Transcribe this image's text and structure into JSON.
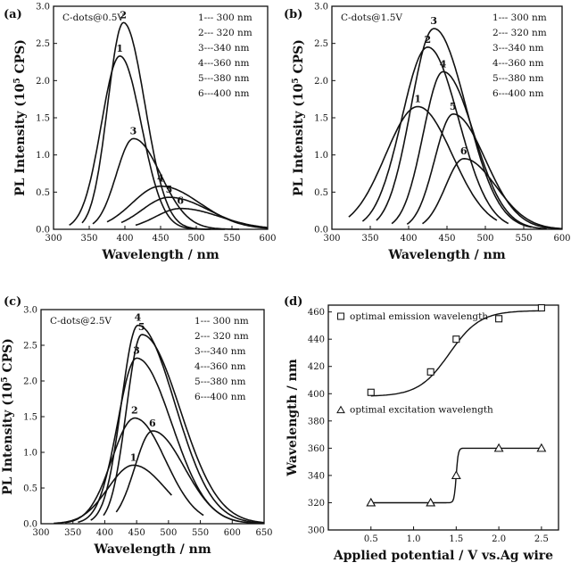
{
  "chart_data": [
    {
      "type": "line",
      "panel_label": "(a)",
      "annotation": "C-dots@0.5V",
      "xlabel": "Wavelength / nm",
      "ylabel": "PL Intensity (10^5 CPS)",
      "xlim": [
        300,
        600
      ],
      "ylim": [
        0,
        3.0
      ],
      "xticks": [
        300,
        350,
        400,
        450,
        500,
        550,
        600
      ],
      "yticks": [
        0.0,
        0.5,
        1.0,
        1.5,
        2.0,
        2.5,
        3.0
      ],
      "legend": [
        "1--- 300 nm",
        "2--- 320 nm",
        "3---340 nm",
        "4---360 nm",
        "5---380 nm",
        "6---400 nm"
      ],
      "series": [
        {
          "name": "1",
          "peak_x": 393,
          "peak_y": 2.33,
          "x_start": 322,
          "x_end": 520,
          "sigma_left": 26,
          "sigma_right": 30
        },
        {
          "name": "2",
          "peak_x": 398,
          "peak_y": 2.78,
          "x_start": 340,
          "x_end": 540,
          "sigma_left": 22,
          "sigma_right": 30
        },
        {
          "name": "3",
          "peak_x": 412,
          "peak_y": 1.22,
          "x_start": 355,
          "x_end": 560,
          "sigma_left": 24,
          "sigma_right": 38
        },
        {
          "name": "4",
          "peak_x": 450,
          "peak_y": 0.58,
          "x_start": 375,
          "x_end": 600,
          "sigma_left": 40,
          "sigma_right": 55
        },
        {
          "name": "5",
          "peak_x": 462,
          "peak_y": 0.43,
          "x_start": 395,
          "x_end": 600,
          "sigma_left": 38,
          "sigma_right": 55
        },
        {
          "name": "6",
          "peak_x": 478,
          "peak_y": 0.28,
          "x_start": 415,
          "x_end": 600,
          "sigma_left": 35,
          "sigma_right": 55
        }
      ]
    },
    {
      "type": "line",
      "panel_label": "(b)",
      "annotation": "C-dots@1.5V",
      "xlabel": "Wavelength / nm",
      "ylabel": "PL Intensity (10^5 CPS)",
      "xlim": [
        300,
        600
      ],
      "ylim": [
        0,
        3.0
      ],
      "xticks": [
        300,
        350,
        400,
        450,
        500,
        550,
        600
      ],
      "yticks": [
        0.0,
        0.5,
        1.0,
        1.5,
        2.0,
        2.5,
        3.0
      ],
      "legend": [
        "1--- 300 nm",
        "2--- 320 nm",
        "3---340 nm",
        "4---360 nm",
        "5---380 nm",
        "6---400 nm"
      ],
      "series": [
        {
          "name": "1",
          "peak_x": 412,
          "peak_y": 1.65,
          "x_start": 322,
          "x_end": 515,
          "sigma_left": 42,
          "sigma_right": 45
        },
        {
          "name": "2",
          "peak_x": 425,
          "peak_y": 2.45,
          "x_start": 340,
          "x_end": 530,
          "sigma_left": 34,
          "sigma_right": 40
        },
        {
          "name": "3",
          "peak_x": 433,
          "peak_y": 2.7,
          "x_start": 358,
          "x_end": 560,
          "sigma_left": 30,
          "sigma_right": 42
        },
        {
          "name": "4",
          "peak_x": 445,
          "peak_y": 2.12,
          "x_start": 378,
          "x_end": 580,
          "sigma_left": 26,
          "sigma_right": 40
        },
        {
          "name": "5",
          "peak_x": 458,
          "peak_y": 1.55,
          "x_start": 398,
          "x_end": 600,
          "sigma_left": 24,
          "sigma_right": 42
        },
        {
          "name": "6",
          "peak_x": 472,
          "peak_y": 0.95,
          "x_start": 418,
          "x_end": 600,
          "sigma_left": 24,
          "sigma_right": 42
        }
      ]
    },
    {
      "type": "line",
      "panel_label": "(c)",
      "annotation": "C-dots@2.5V",
      "xlabel": "Wavelength / nm",
      "ylabel": "PL Intensity (10^5 CPS)",
      "xlim": [
        300,
        650
      ],
      "ylim": [
        0,
        3.0
      ],
      "xticks": [
        300,
        350,
        400,
        450,
        500,
        550,
        600,
        650
      ],
      "yticks": [
        0.0,
        0.5,
        1.0,
        1.5,
        2.0,
        2.5,
        3.0
      ],
      "legend": [
        "1--- 300 nm",
        "2--- 320 nm",
        "3---340 nm",
        "4---360 nm",
        "5---380 nm",
        "6---400 nm"
      ],
      "series": [
        {
          "name": "1",
          "peak_x": 445,
          "peak_y": 0.82,
          "x_start": 320,
          "x_end": 505,
          "sigma_left": 40,
          "sigma_right": 50
        },
        {
          "name": "2",
          "peak_x": 447,
          "peak_y": 1.48,
          "x_start": 338,
          "x_end": 555,
          "sigma_left": 36,
          "sigma_right": 48
        },
        {
          "name": "3",
          "peak_x": 450,
          "peak_y": 2.32,
          "x_start": 358,
          "x_end": 640,
          "sigma_left": 30,
          "sigma_right": 55
        },
        {
          "name": "4",
          "peak_x": 452,
          "peak_y": 2.78,
          "x_start": 378,
          "x_end": 650,
          "sigma_left": 26,
          "sigma_right": 58
        },
        {
          "name": "5",
          "peak_x": 458,
          "peak_y": 2.65,
          "x_start": 398,
          "x_end": 650,
          "sigma_left": 24,
          "sigma_right": 60
        },
        {
          "name": "6",
          "peak_x": 475,
          "peak_y": 1.3,
          "x_start": 418,
          "x_end": 610,
          "sigma_left": 28,
          "sigma_right": 50
        }
      ]
    },
    {
      "type": "scatter",
      "panel_label": "(d)",
      "xlabel": "Applied potential / V vs.Ag wire",
      "ylabel": "Wavelength / nm",
      "xlim": [
        0.0,
        2.7
      ],
      "ylim": [
        300,
        465
      ],
      "xticks": [
        0.5,
        1.0,
        1.5,
        2.0,
        2.5
      ],
      "yticks": [
        300,
        320,
        340,
        360,
        380,
        400,
        420,
        440,
        460
      ],
      "series": [
        {
          "name": "optimal emission wavelength",
          "marker": "square",
          "x": [
            0.5,
            1.2,
            1.5,
            2.0,
            2.5
          ],
          "y": [
            401,
            416,
            440,
            455,
            463
          ]
        },
        {
          "name": "optimal excitation wavelength",
          "marker": "triangle",
          "x": [
            0.5,
            1.2,
            1.5,
            2.0,
            2.5
          ],
          "y": [
            320,
            320,
            340,
            360,
            360
          ]
        }
      ]
    }
  ]
}
